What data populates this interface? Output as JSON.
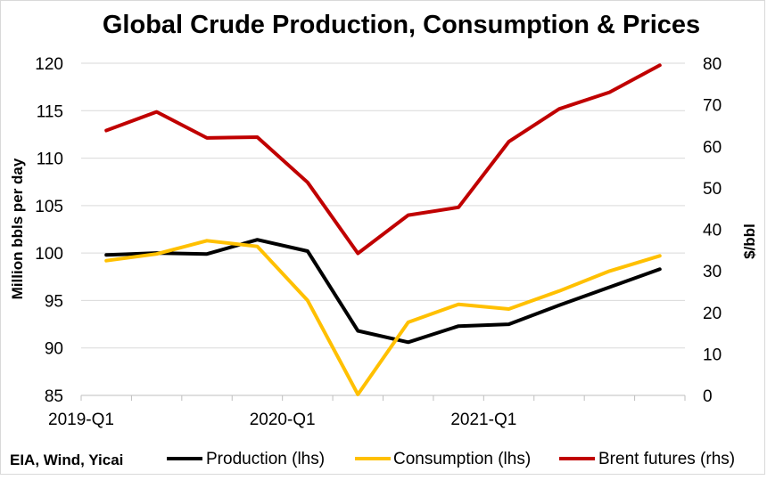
{
  "chart_data": {
    "type": "line",
    "title": "Global Crude Production, Consumption & Prices",
    "y_left_label": "Million bbls per day",
    "y_right_label": "$/bbl",
    "x_tick_labels": [
      "2019-Q1",
      "2020-Q1",
      "2021-Q1"
    ],
    "x": [
      "2019-Q1",
      "2019-Q2",
      "2019-Q3",
      "2019-Q4",
      "2020-Q1",
      "2020-Q2",
      "2020-Q3",
      "2020-Q4",
      "2021-Q1",
      "2021-Q2",
      "2021-Q3",
      "2021-Q4"
    ],
    "y_left_range": [
      85,
      120
    ],
    "y_left_ticks": [
      85,
      90,
      95,
      100,
      105,
      110,
      115,
      120
    ],
    "y_right_range": [
      0,
      80
    ],
    "y_right_ticks": [
      0,
      10,
      20,
      30,
      40,
      50,
      60,
      70,
      80
    ],
    "grid": true,
    "legend_position": "bottom",
    "source": "EIA, Wind, Yicai",
    "series": [
      {
        "name": "Production (lhs)",
        "axis": "left",
        "color": "#000000",
        "values": [
          99.8,
          100.0,
          99.9,
          101.4,
          100.2,
          91.8,
          90.6,
          92.3,
          92.5,
          94.5,
          96.4,
          98.3
        ]
      },
      {
        "name": "Consumption (lhs)",
        "axis": "left",
        "color": "#FFC000",
        "values": [
          99.2,
          99.9,
          101.3,
          100.7,
          95.0,
          85.1,
          92.7,
          94.6,
          94.1,
          96.0,
          98.1,
          99.7
        ]
      },
      {
        "name": "Brent futures (rhs)",
        "axis": "right",
        "color": "#C00000",
        "values": [
          63.8,
          68.3,
          62.0,
          62.2,
          51.3,
          34.2,
          43.4,
          45.3,
          61.1,
          69.0,
          73.0,
          79.5
        ]
      }
    ]
  }
}
